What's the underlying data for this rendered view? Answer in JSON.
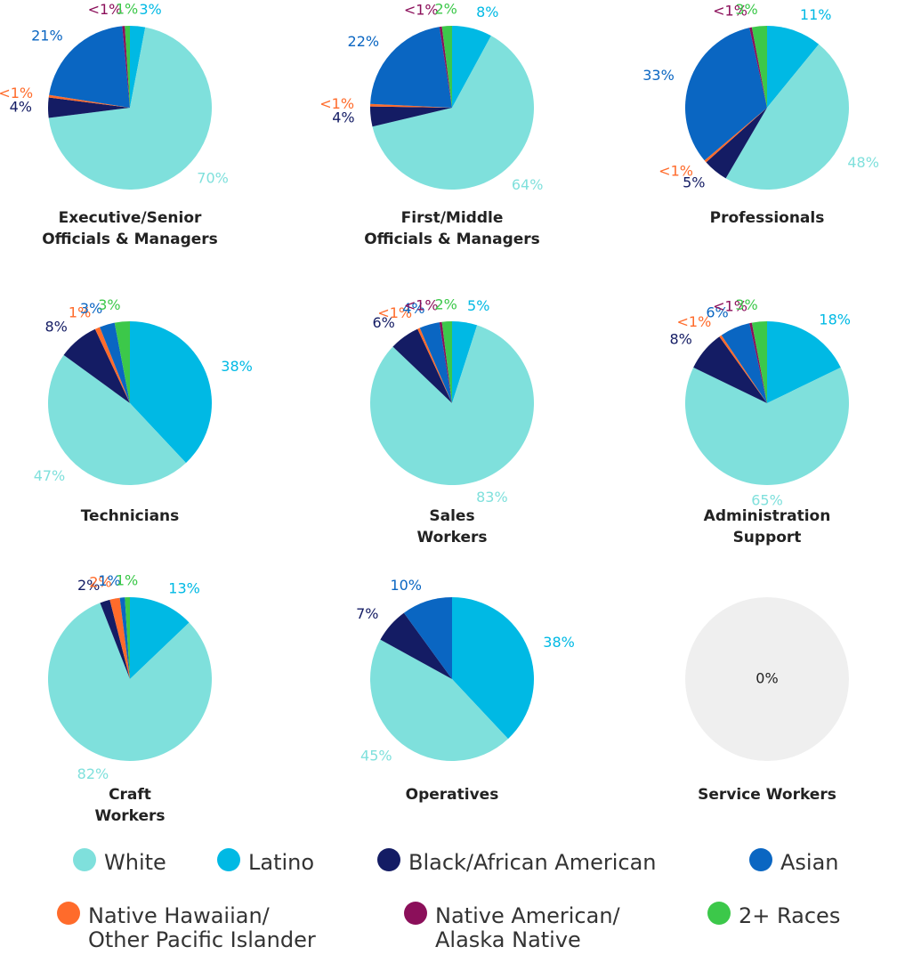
{
  "chart_data": [
    {
      "type": "pie",
      "title": [
        "Executive/Senior",
        "Officials & Managers"
      ],
      "values": [
        70,
        3,
        4,
        21,
        0.5,
        0.5,
        1
      ],
      "value_labels": [
        "70%",
        "3%",
        "4%",
        "21%",
        "<1%",
        "<1%",
        "1%"
      ]
    },
    {
      "type": "pie",
      "title": [
        "First/Middle",
        "Officials & Managers"
      ],
      "values": [
        64,
        8,
        4,
        22,
        0.5,
        0.5,
        2
      ],
      "value_labels": [
        "64%",
        "8%",
        "4%",
        "22%",
        "<1%",
        "<1%",
        "2%"
      ]
    },
    {
      "type": "pie",
      "title": [
        "Professionals"
      ],
      "values": [
        48,
        11,
        5,
        33,
        0.5,
        0.5,
        3
      ],
      "value_labels": [
        "48%",
        "11%",
        "5%",
        "33%",
        "<1%",
        "<1%",
        "3%"
      ]
    },
    {
      "type": "pie",
      "title": [
        "Technicians"
      ],
      "values": [
        47,
        38,
        8,
        3,
        1,
        null,
        3
      ],
      "value_labels": [
        "47%",
        "38%",
        "8%",
        "3%",
        "1%",
        null,
        "3%"
      ]
    },
    {
      "type": "pie",
      "title": [
        "Sales",
        "Workers"
      ],
      "values": [
        83,
        5,
        6,
        4,
        0.5,
        0.5,
        2
      ],
      "value_labels": [
        "83%",
        "5%",
        "6%",
        "4%",
        "<1%",
        "<1%",
        "2%"
      ]
    },
    {
      "type": "pie",
      "title": [
        "Administration",
        "Support"
      ],
      "values": [
        65,
        18,
        8,
        6,
        0.5,
        0.5,
        3
      ],
      "value_labels": [
        "65%",
        "18%",
        "8%",
        "6%",
        "<1%",
        "<1%",
        "3%"
      ]
    },
    {
      "type": "pie",
      "title": [
        "Craft",
        "Workers"
      ],
      "values": [
        82,
        13,
        2,
        1,
        2,
        null,
        1
      ],
      "value_labels": [
        "82%",
        "13%",
        "2%",
        "1%",
        "2%",
        null,
        "1%"
      ]
    },
    {
      "type": "pie",
      "title": [
        "Operatives"
      ],
      "values": [
        45,
        38,
        7,
        10,
        null,
        null,
        null
      ],
      "value_labels": [
        "45%",
        "38%",
        "7%",
        "10%",
        null,
        null,
        null
      ]
    },
    {
      "type": "pie",
      "title": [
        "Service Workers"
      ],
      "values": [
        null,
        null,
        null,
        null,
        null,
        null,
        null
      ],
      "total": 0,
      "total_label": "0%",
      "empty_color": "#efefef"
    }
  ],
  "legend": {
    "items": [
      {
        "name": [
          "White"
        ],
        "color": "#7fe0dc"
      },
      {
        "name": [
          "Latino"
        ],
        "color": "#00b9e4"
      },
      {
        "name": [
          "Black/African American"
        ],
        "color": "#141c64"
      },
      {
        "name": [
          "Asian"
        ],
        "color": "#0a66c2"
      },
      {
        "name": [
          "Native Hawaiian/",
          "Other Pacific Islander"
        ],
        "color": "#ff6b2b"
      },
      {
        "name": [
          "Native American/",
          "Alaska Native"
        ],
        "color": "#8b0f5a"
      },
      {
        "name": [
          "2+ Races"
        ],
        "color": "#3cc84a"
      }
    ]
  }
}
